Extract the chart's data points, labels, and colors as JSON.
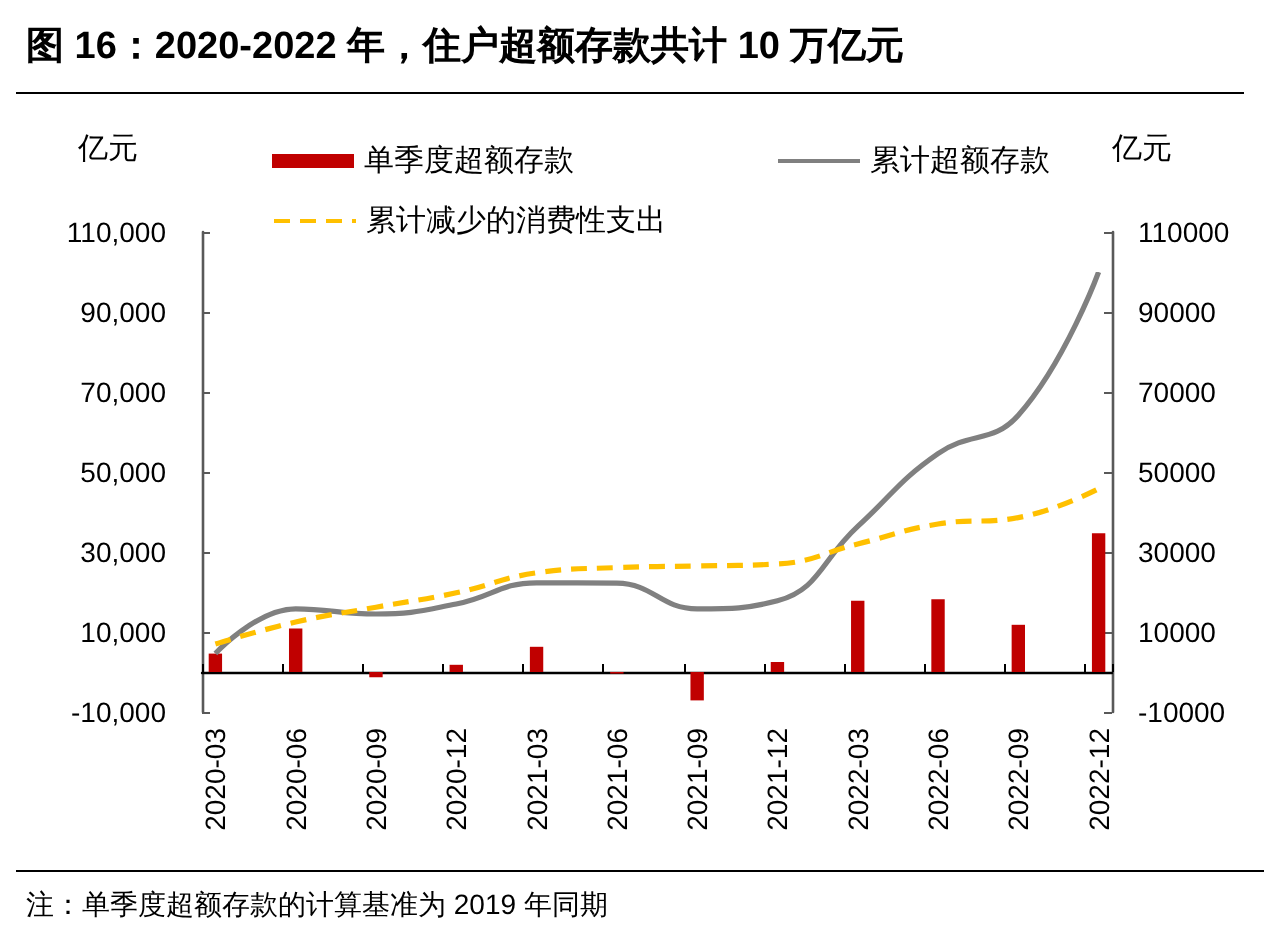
{
  "chart_data": {
    "type": "bar",
    "title": "图 16：2020-2022 年，住户超额存款共计 10 万亿元",
    "ylabel": "亿元",
    "y2label": "亿元",
    "annotations": [
      "注：单季度超额存款的计算基准为 2019 年同期"
    ],
    "categories": [
      "2020-03",
      null,
      null,
      "2020-06",
      null,
      null,
      "2020-09",
      null,
      null,
      "2020-12",
      null,
      null,
      "2021-03",
      null,
      null,
      "2021-06",
      null,
      null,
      "2021-09",
      null,
      null,
      "2021-12",
      null,
      null,
      "2022-03",
      null,
      null,
      "2022-06",
      null,
      null,
      "2022-09",
      null,
      null,
      "2022-12"
    ],
    "series": [
      {
        "name": "单季度超额存款",
        "color": "#c00000",
        "values": [
          4600,
          null,
          null,
          10900,
          null,
          null,
          -1300,
          null,
          null,
          1800,
          null,
          null,
          6300,
          null,
          null,
          -400,
          null,
          null,
          -7100,
          null,
          null,
          2500,
          null,
          null,
          17800,
          null,
          null,
          18200,
          null,
          null,
          11800,
          null,
          null,
          34700
        ]
      },
      {
        "name": "累计超额存款",
        "type": "line",
        "color": "#808080",
        "line_style": "solid",
        "values": [
          4600,
          null,
          null,
          15800,
          null,
          null,
          14500,
          null,
          null,
          17000,
          null,
          null,
          22300,
          null,
          null,
          22200,
          null,
          null,
          15800,
          null,
          null,
          17800,
          null,
          null,
          36400,
          null,
          null,
          54600,
          null,
          null,
          64200,
          null,
          null,
          100000
        ]
      },
      {
        "name": "累计减少的消费性支出",
        "type": "line",
        "color": "#ffc000",
        "line_style": "dashed",
        "values": [
          7000,
          null,
          null,
          12500,
          null,
          null,
          16200,
          null,
          null,
          19800,
          null,
          null,
          24800,
          null,
          null,
          26100,
          null,
          null,
          26500,
          null,
          null,
          27000,
          null,
          null,
          32000,
          null,
          null,
          37000,
          null,
          null,
          38600,
          null,
          null,
          45800
        ]
      }
    ],
    "ylim": [
      -10000,
      110000
    ],
    "yticks": [
      {
        "value": -10000,
        "label": "-10,000"
      },
      {
        "value": 10000,
        "label": "10,000"
      },
      {
        "value": 30000,
        "label": "30,000"
      },
      {
        "value": 50000,
        "label": "50,000"
      },
      {
        "value": 70000,
        "label": "70,000"
      },
      {
        "value": 90000,
        "label": "90,000"
      },
      {
        "value": 110000,
        "label": "110,000"
      }
    ],
    "y2lim": [
      -10000,
      110000
    ],
    "y2ticks": [
      -10000,
      10000,
      30000,
      50000,
      70000,
      90000,
      110000
    ],
    "grid": false,
    "legend": "top",
    "marker": "none"
  }
}
